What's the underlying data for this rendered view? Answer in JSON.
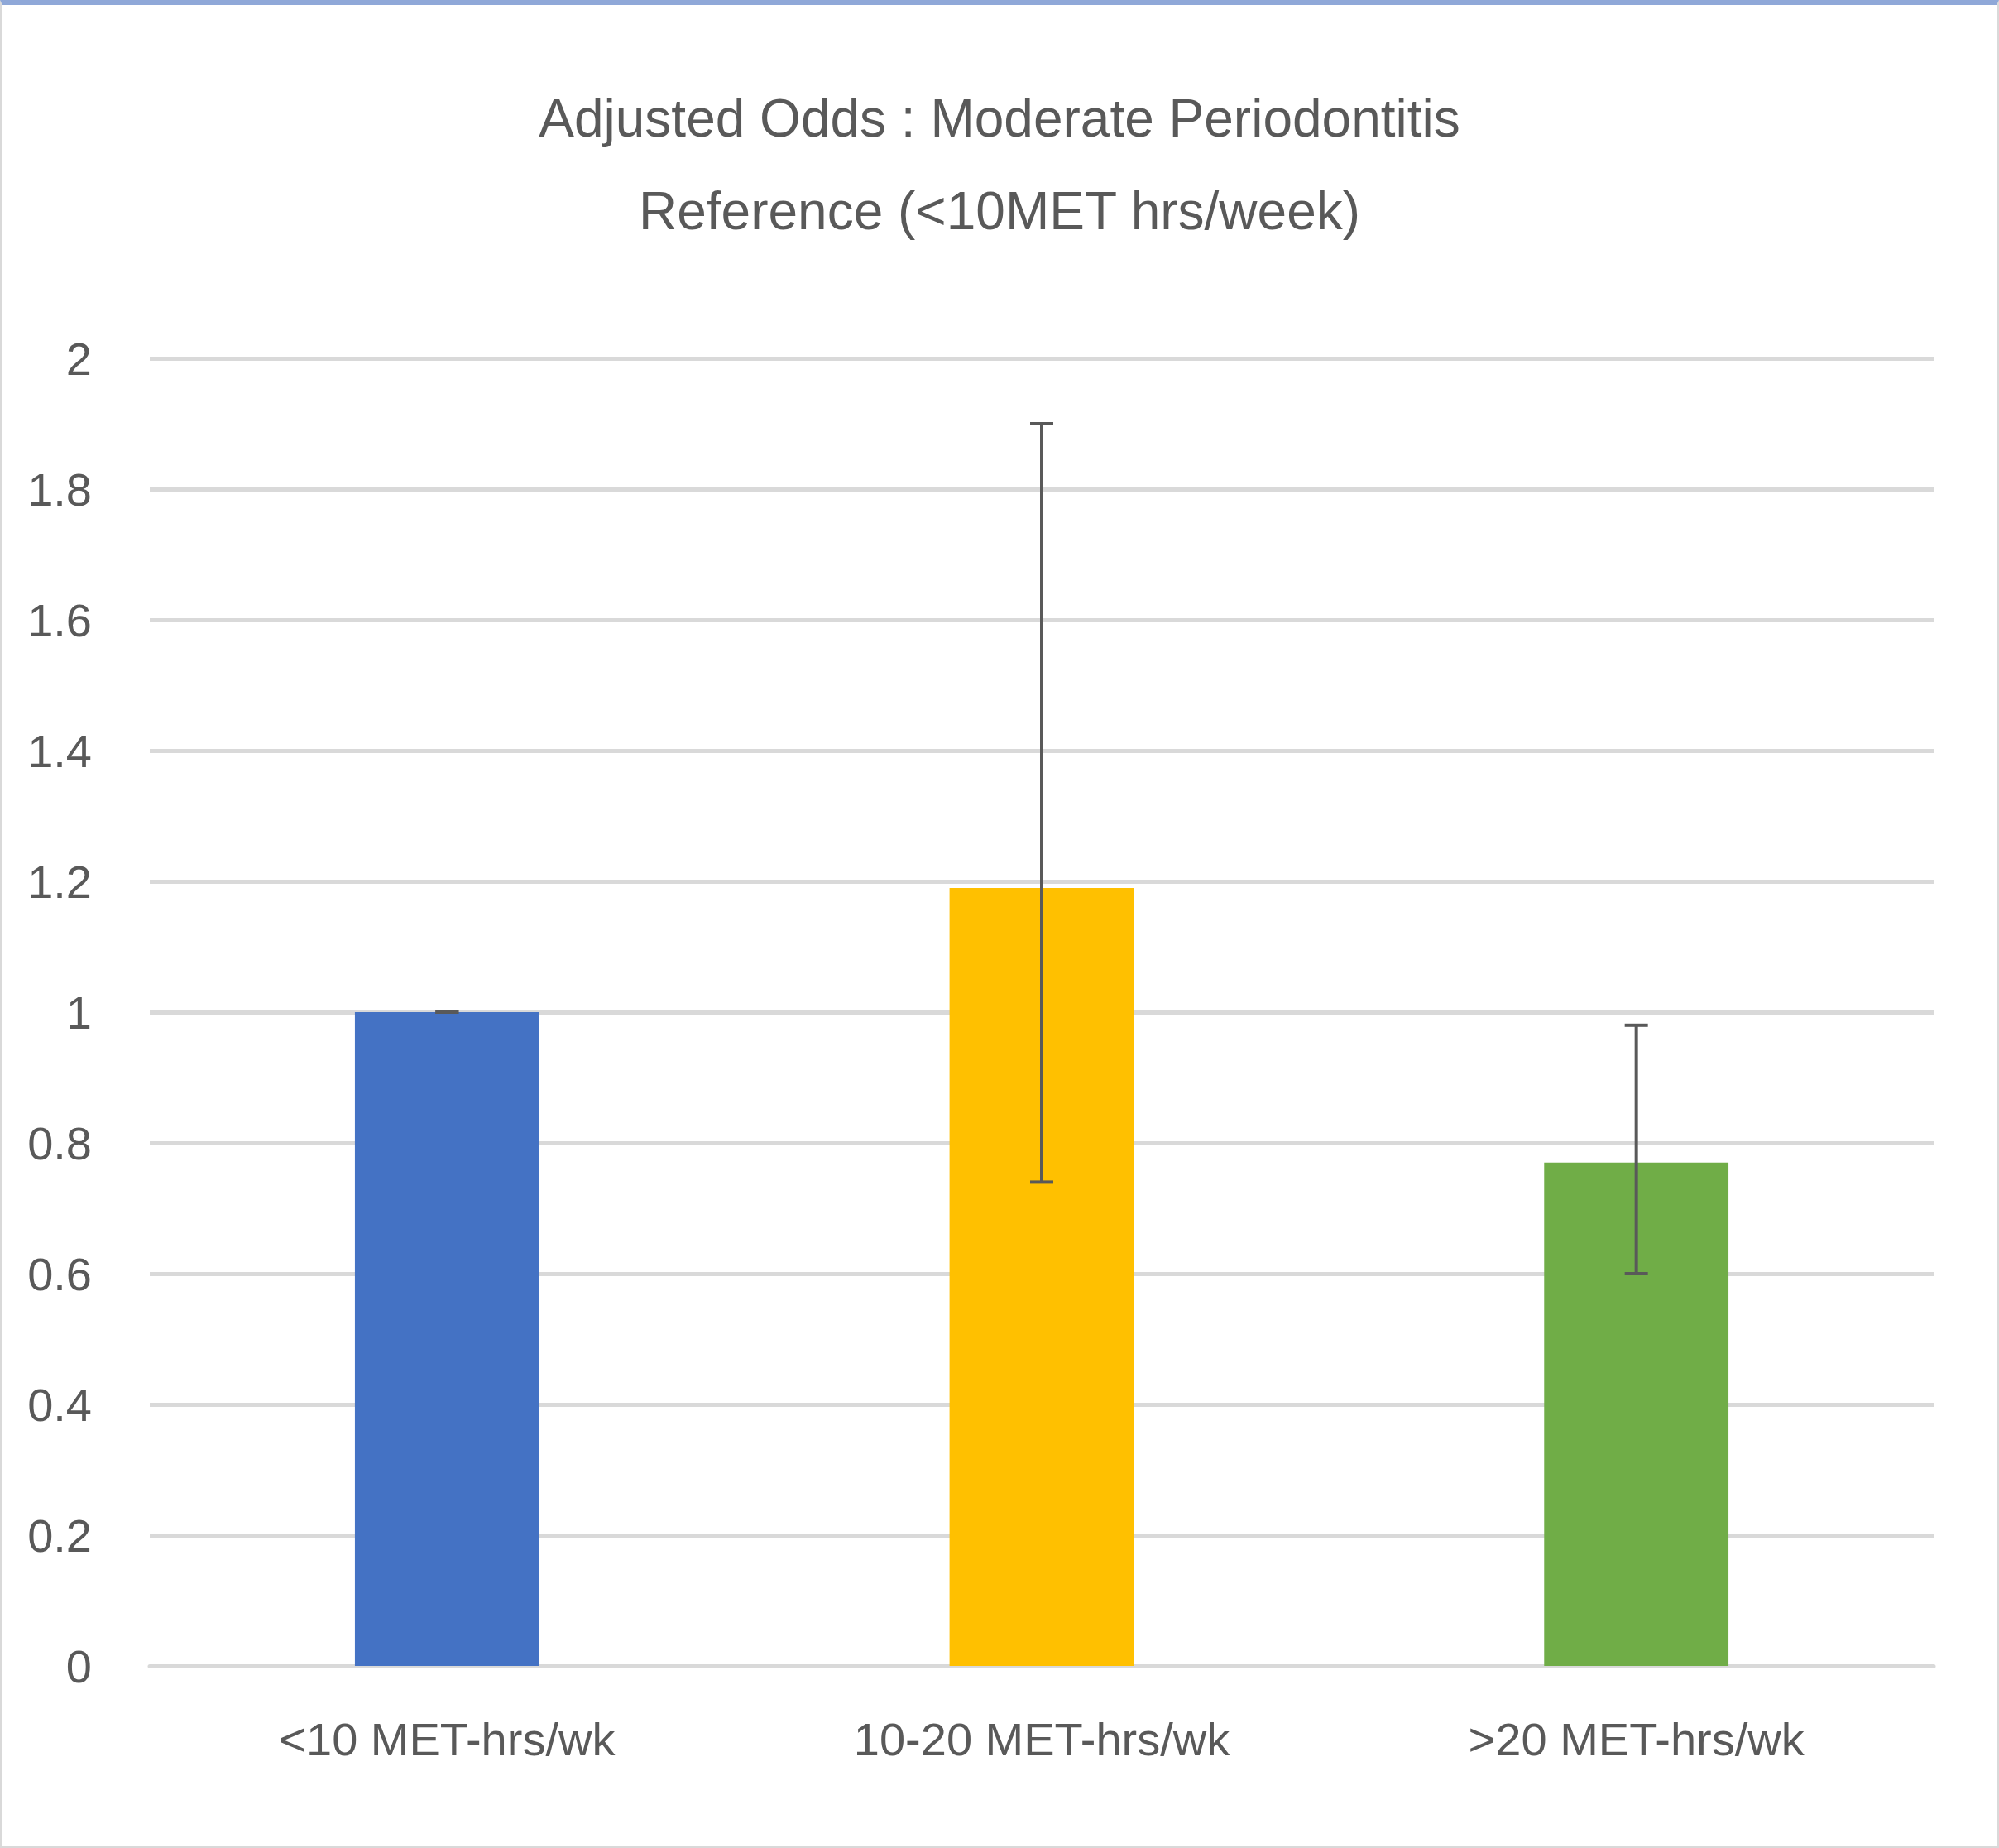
{
  "chart_data": {
    "type": "bar",
    "title": "Adjusted Odds : Moderate Periodontitis",
    "subtitle": "Reference (<10MET hrs/week)",
    "categories": [
      "<10 MET-hrs/wk",
      "10-20 MET-hrs/wk",
      ">20 MET-hrs/wk"
    ],
    "values": [
      1,
      1.19,
      0.77
    ],
    "colors": [
      "#4472c4",
      "#ffc000",
      "#70ad47"
    ],
    "errors": [
      [
        1,
        1
      ],
      [
        0.74,
        1.9
      ],
      [
        0.6,
        0.98
      ]
    ],
    "ylim": [
      0,
      2
    ],
    "yticks": [
      0,
      0.2,
      0.4,
      0.6,
      0.8,
      1,
      1.2,
      1.4,
      1.6,
      1.8,
      2
    ],
    "grid": "y"
  }
}
